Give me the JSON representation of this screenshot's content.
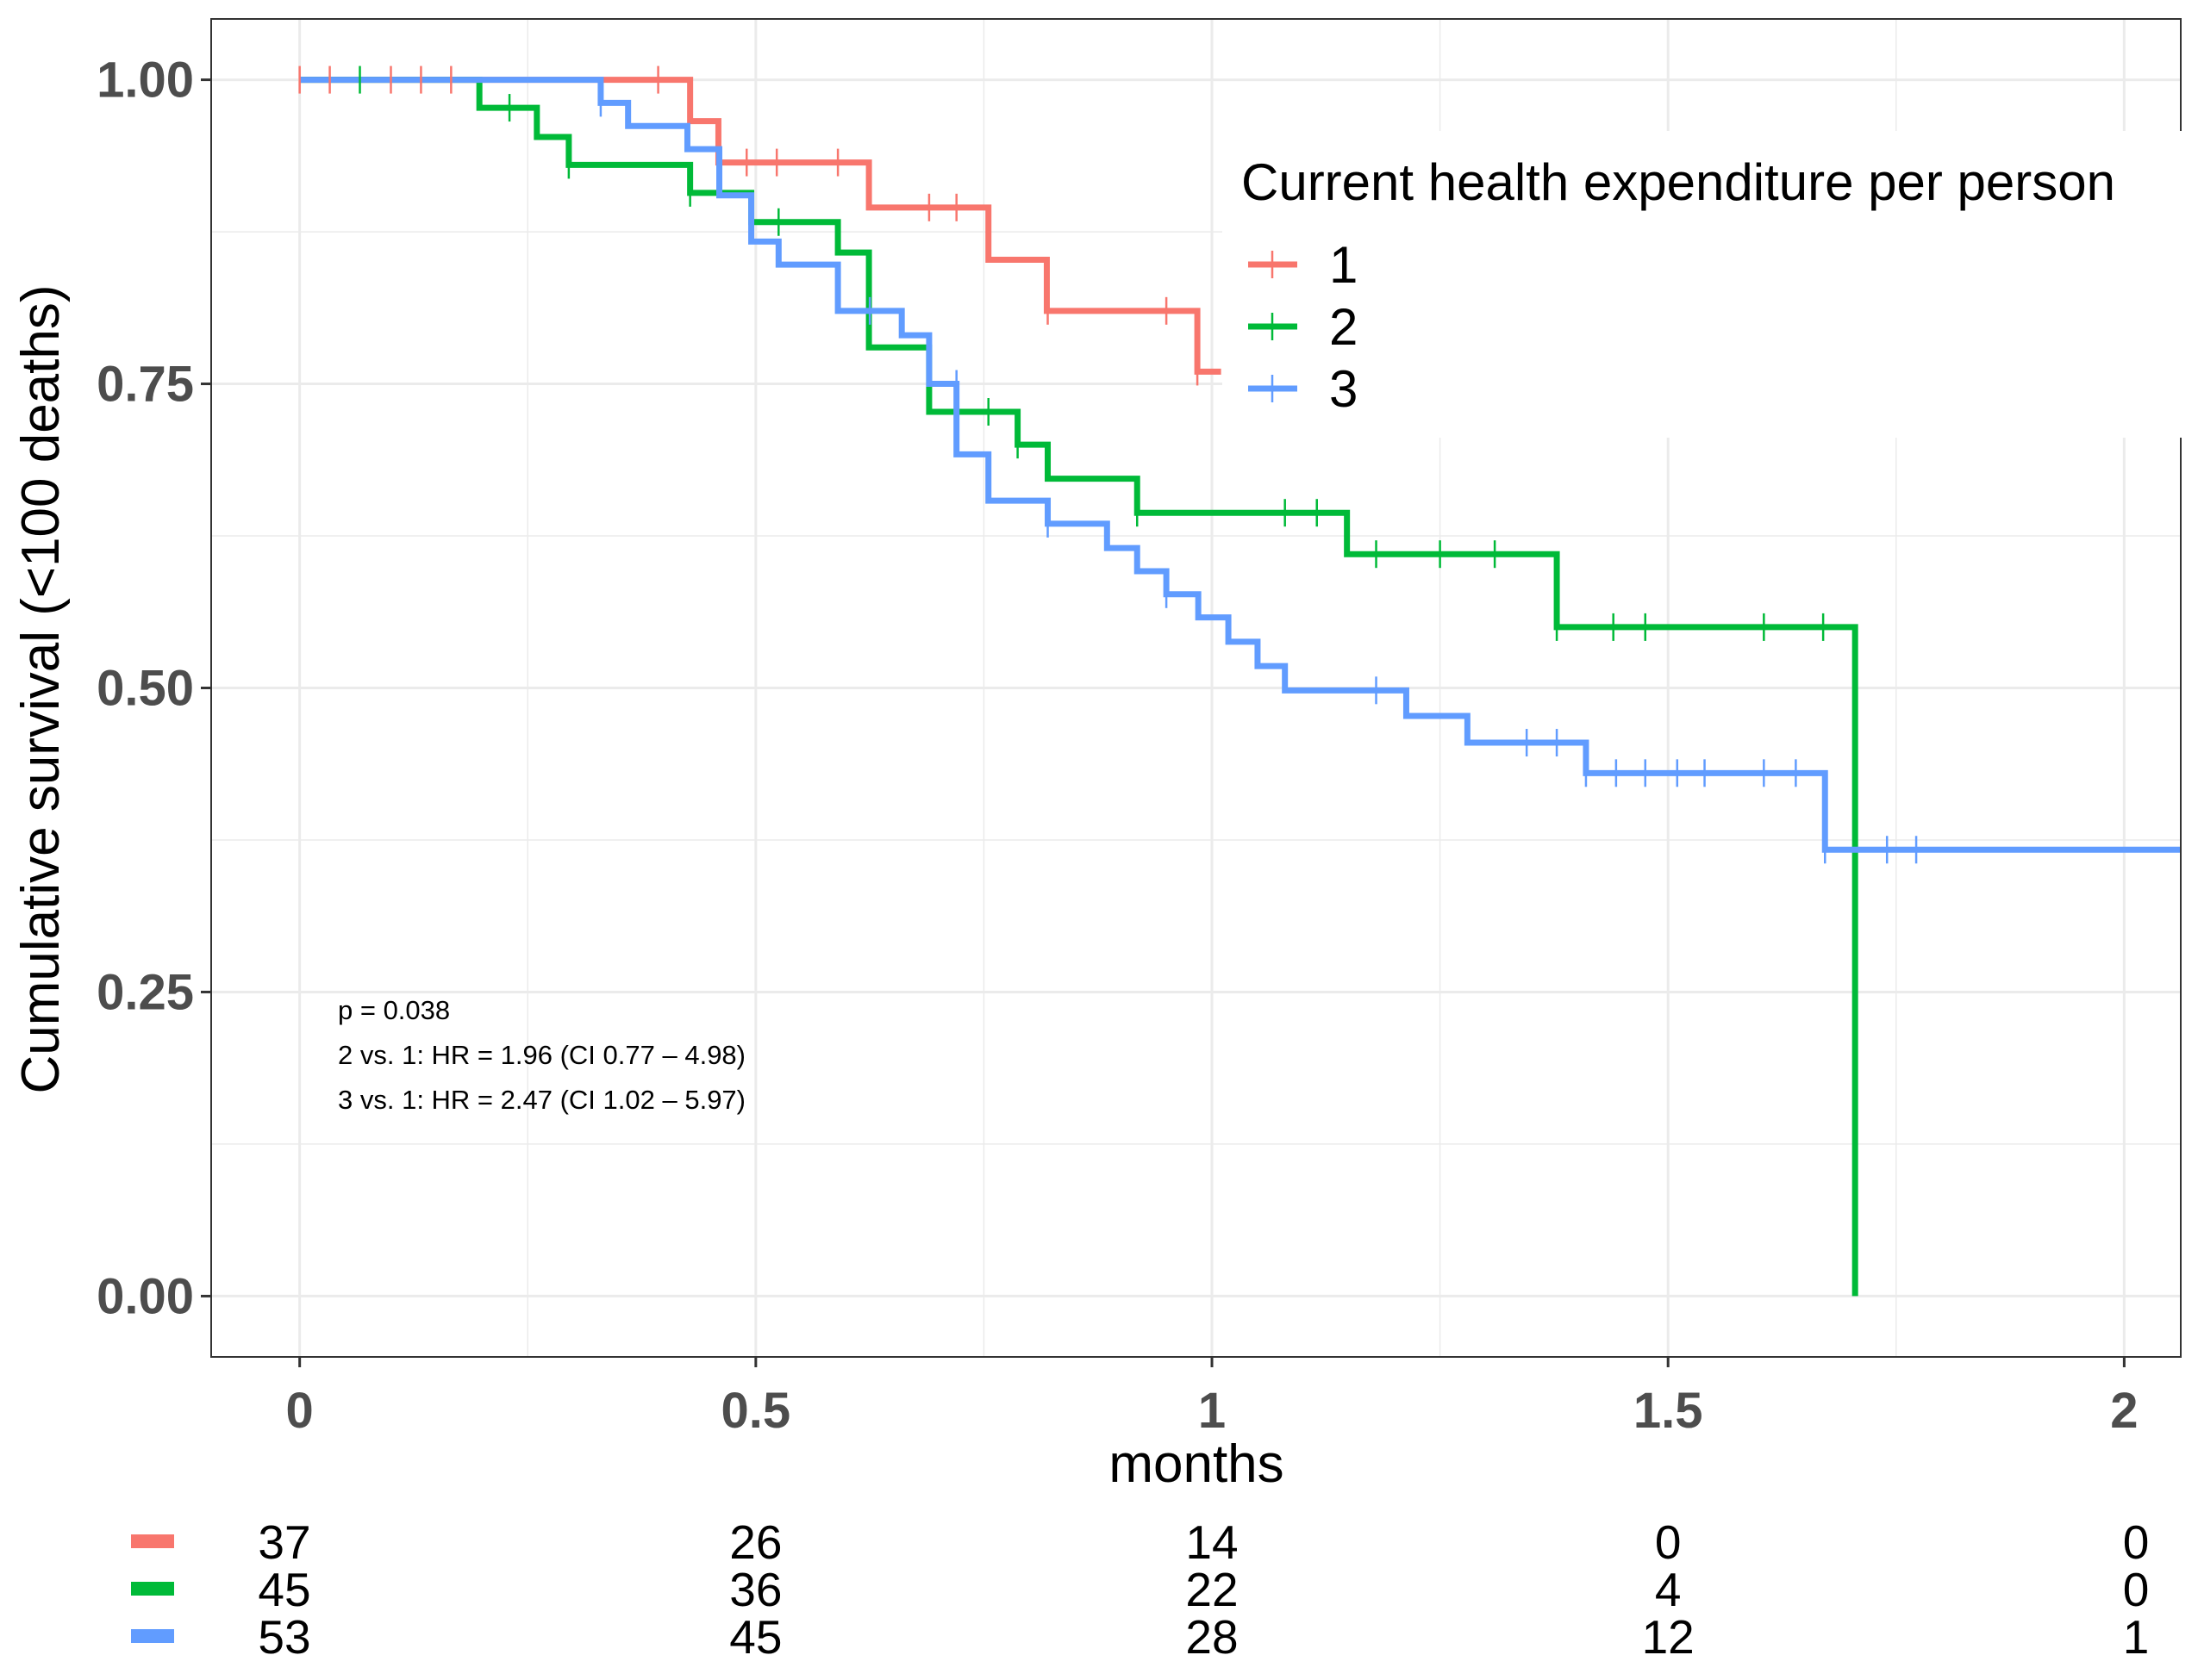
{
  "chart_data": {
    "type": "line",
    "xlabel": "months",
    "ylabel": "Cumulative survival (<100 deaths)",
    "xlim": [
      -0.097,
      2.062
    ],
    "ylim": [
      -0.05,
      1.05
    ],
    "x_ticks": [
      0,
      0.5,
      1,
      1.5,
      2
    ],
    "x_tick_labels": [
      "0",
      "0.5",
      "1",
      "1.5",
      "2"
    ],
    "y_ticks": [
      0,
      0.25,
      0.5,
      0.75,
      1
    ],
    "y_tick_labels": [
      "0.00",
      "0.25",
      "0.50",
      "0.75",
      "1.00"
    ],
    "grid": true,
    "legend": {
      "title": "Current health expenditure per person",
      "placement": "top-right",
      "entries": [
        "1",
        "2",
        "3"
      ]
    },
    "annotations": [
      "p = 0.038",
      "2 vs. 1: HR = 1.96 (CI 0.77 – 4.98)",
      "3 vs. 1: HR = 2.47 (CI 1.02 – 5.97)"
    ],
    "series": [
      {
        "name": "1",
        "color": "#F8766D",
        "steps": [
          [
            0,
            1.0
          ],
          [
            0.428,
            0.966
          ],
          [
            0.459,
            0.932
          ],
          [
            0.624,
            0.895
          ],
          [
            0.755,
            0.852
          ],
          [
            0.819,
            0.81
          ],
          [
            0.984,
            0.76
          ],
          [
            1.01,
            0.76
          ]
        ],
        "censor": [
          [
            0,
            1.0
          ],
          [
            0.033,
            1.0
          ],
          [
            0.1,
            1.0
          ],
          [
            0.133,
            1.0
          ],
          [
            0.166,
            1.0
          ],
          [
            0.393,
            1.0
          ],
          [
            0.49,
            0.932
          ],
          [
            0.523,
            0.932
          ],
          [
            0.59,
            0.932
          ],
          [
            0.69,
            0.895
          ],
          [
            0.72,
            0.895
          ],
          [
            0.82,
            0.81
          ],
          [
            0.95,
            0.81
          ],
          [
            0.984,
            0.76
          ]
        ]
      },
      {
        "name": "2",
        "color": "#00BA38",
        "steps": [
          [
            0,
            1.0
          ],
          [
            0.197,
            0.977
          ],
          [
            0.26,
            0.953
          ],
          [
            0.295,
            0.93
          ],
          [
            0.428,
            0.907
          ],
          [
            0.495,
            0.883
          ],
          [
            0.59,
            0.858
          ],
          [
            0.624,
            0.78
          ],
          [
            0.69,
            0.727
          ],
          [
            0.787,
            0.7
          ],
          [
            0.82,
            0.672
          ],
          [
            0.918,
            0.644
          ],
          [
            1.148,
            0.61
          ],
          [
            1.378,
            0.55
          ],
          [
            1.705,
            0.0
          ]
        ],
        "censor": [
          [
            0.066,
            1.0
          ],
          [
            0.23,
            0.977
          ],
          [
            0.295,
            0.93
          ],
          [
            0.428,
            0.907
          ],
          [
            0.525,
            0.883
          ],
          [
            0.755,
            0.727
          ],
          [
            0.787,
            0.7
          ],
          [
            0.918,
            0.644
          ],
          [
            1.08,
            0.644
          ],
          [
            1.115,
            0.644
          ],
          [
            1.18,
            0.61
          ],
          [
            1.25,
            0.61
          ],
          [
            1.31,
            0.61
          ],
          [
            1.378,
            0.55
          ],
          [
            1.44,
            0.55
          ],
          [
            1.475,
            0.55
          ],
          [
            1.605,
            0.55
          ],
          [
            1.67,
            0.55
          ]
        ]
      },
      {
        "name": "3",
        "color": "#619CFF",
        "steps": [
          [
            0,
            1.0
          ],
          [
            0.33,
            0.981
          ],
          [
            0.36,
            0.962
          ],
          [
            0.425,
            0.943
          ],
          [
            0.46,
            0.905
          ],
          [
            0.495,
            0.867
          ],
          [
            0.525,
            0.848
          ],
          [
            0.59,
            0.81
          ],
          [
            0.66,
            0.79
          ],
          [
            0.69,
            0.75
          ],
          [
            0.72,
            0.692
          ],
          [
            0.755,
            0.654
          ],
          [
            0.82,
            0.635
          ],
          [
            0.885,
            0.615
          ],
          [
            0.918,
            0.596
          ],
          [
            0.95,
            0.577
          ],
          [
            0.985,
            0.558
          ],
          [
            1.018,
            0.538
          ],
          [
            1.05,
            0.518
          ],
          [
            1.08,
            0.498
          ],
          [
            1.213,
            0.477
          ],
          [
            1.28,
            0.455
          ],
          [
            1.41,
            0.43
          ],
          [
            1.672,
            0.367
          ],
          [
            2.062,
            0.367
          ]
        ],
        "censor": [
          [
            0.33,
            0.981
          ],
          [
            0.625,
            0.81
          ],
          [
            0.72,
            0.75
          ],
          [
            0.82,
            0.635
          ],
          [
            0.95,
            0.577
          ],
          [
            1.18,
            0.498
          ],
          [
            1.345,
            0.455
          ],
          [
            1.378,
            0.455
          ],
          [
            1.41,
            0.43
          ],
          [
            1.443,
            0.43
          ],
          [
            1.475,
            0.43
          ],
          [
            1.51,
            0.43
          ],
          [
            1.54,
            0.43
          ],
          [
            1.605,
            0.43
          ],
          [
            1.64,
            0.43
          ],
          [
            1.672,
            0.367
          ],
          [
            1.74,
            0.367
          ],
          [
            1.772,
            0.367
          ]
        ]
      }
    ],
    "risk_table": {
      "times": [
        0,
        0.5,
        1,
        1.5,
        2
      ],
      "rows": [
        {
          "color": "#F8766D",
          "counts": [
            "37",
            "26",
            "14",
            "0",
            "0"
          ]
        },
        {
          "color": "#00BA38",
          "counts": [
            "45",
            "36",
            "22",
            "4",
            "0"
          ]
        },
        {
          "color": "#619CFF",
          "counts": [
            "53",
            "45",
            "28",
            "12",
            "1"
          ]
        }
      ]
    }
  }
}
